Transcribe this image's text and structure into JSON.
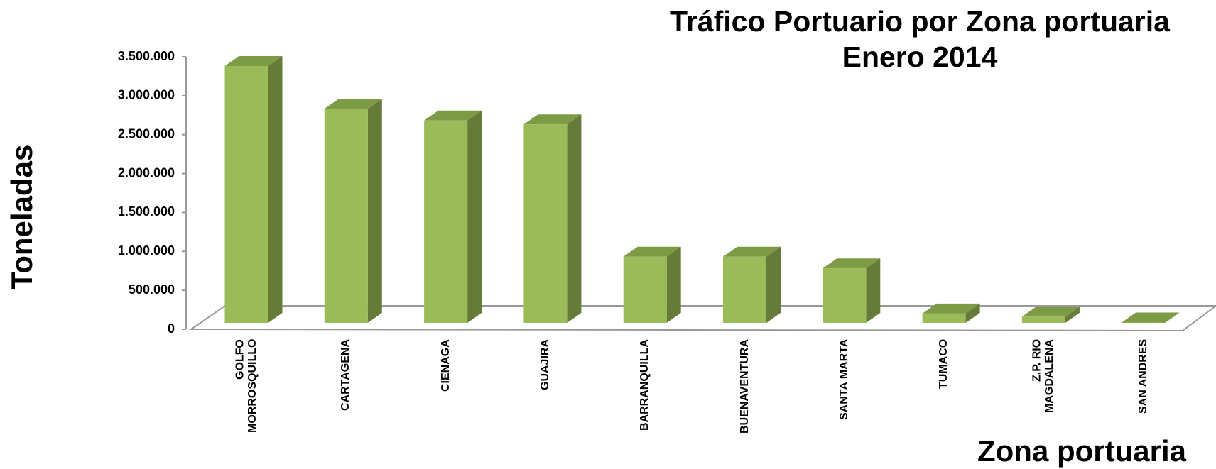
{
  "chart_data": {
    "type": "bar3d",
    "title": "Tráfico Portuario por Zona portuaria",
    "subtitle": "Enero 2014",
    "y_label": "Toneladas",
    "x_label": "Zona portuaria",
    "categories": [
      "GOLFO\nMORROSQUILLO",
      "CARTAGENA",
      "CIENAGA",
      "GUAJIRA",
      "BARRANQUILLA",
      "BUENAVENTURA",
      "SANTA MARTA",
      "TUMACO",
      "Z.P. RIO\nMAGDALENA",
      "SAN ANDRES"
    ],
    "values": [
      3300000,
      2750000,
      2600000,
      2550000,
      850000,
      850000,
      700000,
      120000,
      80000,
      5000
    ],
    "color": "#9bbb59",
    "ylim": [
      0,
      3500000
    ],
    "yticks": [
      0,
      {
        "value": 500000,
        "label": "500.000"
      },
      {
        "value": 1000000,
        "label": "1.000.000"
      },
      {
        "value": 1500000,
        "label": "1.500.000"
      },
      {
        "value": 2000000,
        "label": "2.000.000"
      },
      {
        "value": 2500000,
        "label": "2.500.000"
      },
      {
        "value": 3000000,
        "label": "3.000.000"
      },
      {
        "value": 3500000,
        "label": "3.500.000"
      }
    ]
  }
}
